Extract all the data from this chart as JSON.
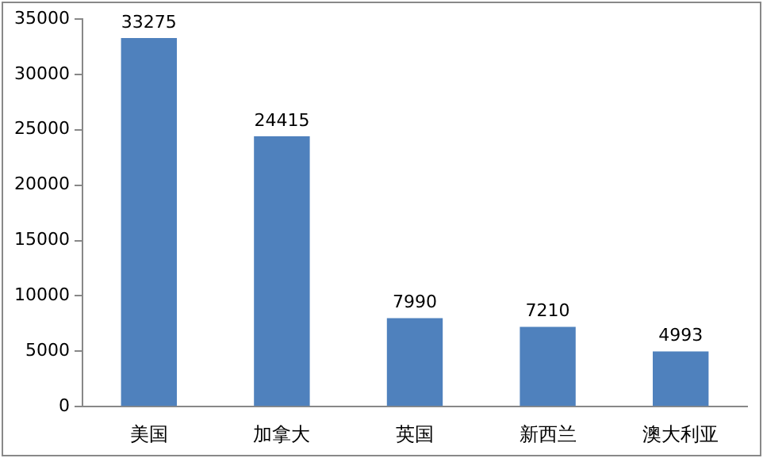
{
  "chart_data": {
    "type": "bar",
    "categories": [
      "美国",
      "加拿大",
      "英国",
      "新西兰",
      "澳大利亚"
    ],
    "values": [
      33275,
      24415,
      7990,
      7210,
      4993
    ],
    "color": "#4f81bd",
    "ylim": [
      0,
      35000
    ],
    "yticks": [
      0,
      5000,
      10000,
      15000,
      20000,
      25000,
      30000,
      35000
    ],
    "grid": false,
    "legend": false,
    "data_labels": true
  }
}
